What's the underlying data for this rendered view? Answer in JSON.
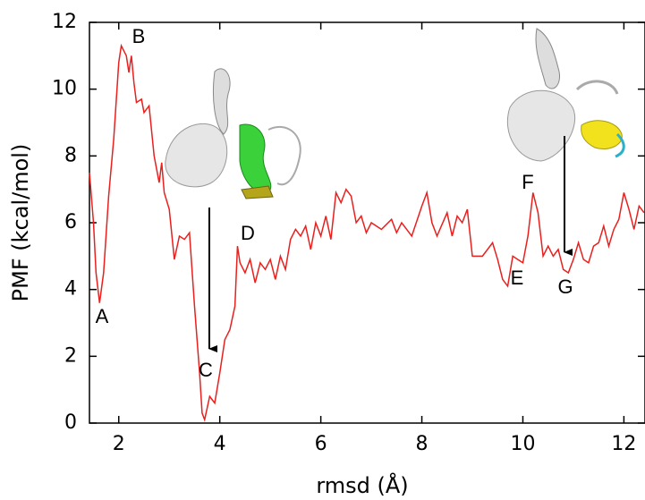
{
  "chart_data": {
    "type": "line",
    "x_label": "rmsd (Å)",
    "y_label": "PMF (kcal/mol)",
    "annotations": [
      "A",
      "B",
      "C",
      "D",
      "E",
      "F",
      "G"
    ],
    "xlim": [
      1.42,
      12.4
    ],
    "ylim": [
      0,
      12
    ],
    "xticks": [
      2,
      4,
      6,
      8,
      10,
      12
    ],
    "yticks": [
      0,
      2,
      4,
      6,
      8,
      10,
      12
    ],
    "series": [
      {
        "color": "#e8201e",
        "x": [
          1.42,
          1.5,
          1.55,
          1.62,
          1.7,
          1.8,
          1.9,
          2.0,
          2.05,
          2.15,
          2.2,
          2.25,
          2.3,
          2.35,
          2.45,
          2.5,
          2.6,
          2.7,
          2.8,
          2.85,
          2.9,
          3.0,
          3.1,
          3.2,
          3.3,
          3.4,
          3.5,
          3.6,
          3.65,
          3.7,
          3.8,
          3.9,
          4.0,
          4.1,
          4.2,
          4.3,
          4.35,
          4.4,
          4.5,
          4.6,
          4.7,
          4.8,
          4.9,
          5.0,
          5.1,
          5.2,
          5.3,
          5.4,
          5.5,
          5.6,
          5.7,
          5.8,
          5.9,
          6.0,
          6.1,
          6.2,
          6.3,
          6.4,
          6.5,
          6.6,
          6.7,
          6.8,
          6.9,
          7.0,
          7.2,
          7.4,
          7.5,
          7.6,
          7.8,
          8.0,
          8.1,
          8.2,
          8.3,
          8.5,
          8.6,
          8.7,
          8.8,
          8.9,
          9.0,
          9.2,
          9.4,
          9.5,
          9.6,
          9.7,
          9.8,
          9.9,
          10.0,
          10.1,
          10.2,
          10.3,
          10.4,
          10.5,
          10.6,
          10.7,
          10.8,
          10.9,
          11.0,
          11.1,
          11.2,
          11.3,
          11.4,
          11.5,
          11.6,
          11.7,
          11.8,
          11.9,
          12.0,
          12.1,
          12.2,
          12.3,
          12.4
        ],
        "values": [
          7.5,
          6.0,
          4.5,
          3.6,
          4.5,
          6.8,
          8.5,
          10.8,
          11.3,
          11.0,
          10.5,
          11.0,
          10.2,
          9.6,
          9.7,
          9.3,
          9.5,
          8.0,
          7.2,
          7.8,
          6.9,
          6.4,
          4.9,
          5.6,
          5.5,
          5.7,
          3.5,
          1.5,
          0.3,
          0.1,
          0.8,
          0.6,
          1.5,
          2.5,
          2.8,
          3.5,
          5.3,
          4.8,
          4.5,
          4.9,
          4.2,
          4.8,
          4.6,
          4.9,
          4.3,
          5.0,
          4.6,
          5.5,
          5.8,
          5.6,
          5.9,
          5.2,
          6.0,
          5.6,
          6.2,
          5.5,
          6.9,
          6.6,
          7.0,
          6.8,
          6.0,
          6.2,
          5.7,
          6.0,
          5.8,
          6.1,
          5.7,
          6.0,
          5.6,
          6.5,
          6.9,
          6.0,
          5.6,
          6.3,
          5.6,
          6.2,
          6.0,
          6.4,
          5.0,
          5.0,
          5.4,
          4.9,
          4.3,
          4.1,
          5.0,
          4.9,
          4.8,
          5.6,
          6.9,
          6.3,
          5.0,
          5.3,
          5.0,
          5.2,
          4.6,
          4.5,
          4.9,
          5.4,
          4.9,
          4.8,
          5.3,
          5.4,
          5.9,
          5.3,
          5.8,
          6.1,
          6.9,
          6.4,
          5.8,
          6.5,
          6.3
        ]
      }
    ]
  }
}
